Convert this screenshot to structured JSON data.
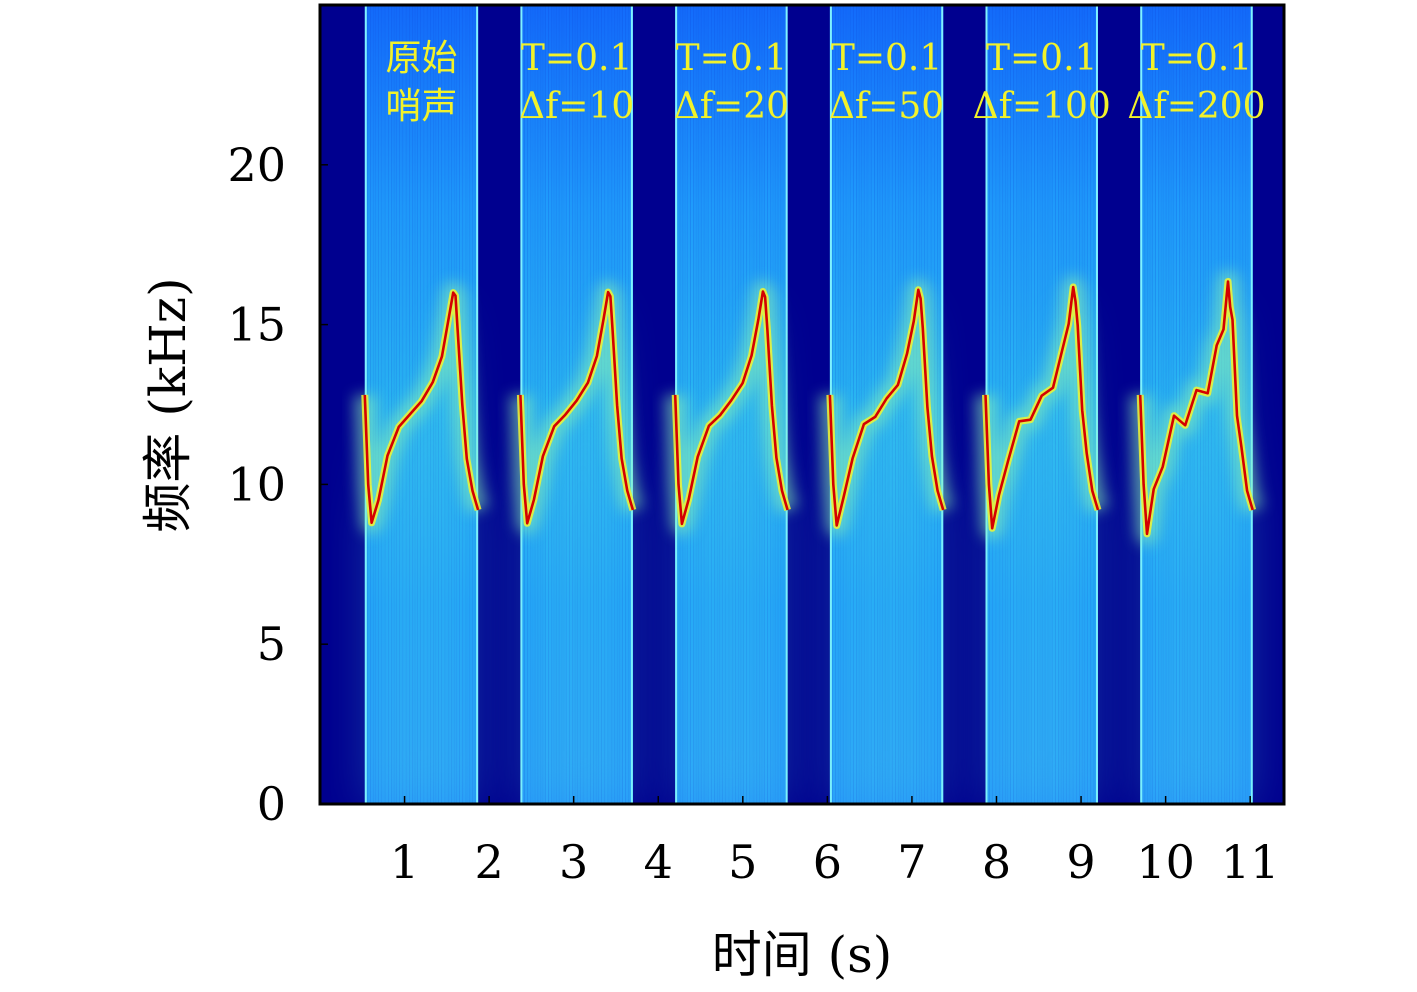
{
  "chart_data": {
    "type": "heatmap",
    "title": "",
    "xlabel": "时间 (s)",
    "ylabel": "频率 (kHz)",
    "xlim": [
      0,
      11.4
    ],
    "ylim": [
      0,
      25
    ],
    "xticks": [
      1,
      2,
      3,
      4,
      5,
      6,
      7,
      8,
      9,
      10,
      11
    ],
    "yticks": [
      0,
      5,
      10,
      15,
      20
    ],
    "grid": false,
    "colormap": "jet",
    "colors": {
      "background": "#00008f",
      "band_low": "#1e9fff",
      "band_glow": "#7af0c8",
      "ridge": "#d40000",
      "annotation": "#f2f22a"
    },
    "segments": [
      {
        "start": 0.53,
        "end": 1.87,
        "label_line1": "原始",
        "label_line2": "哨声",
        "delta_f": null
      },
      {
        "start": 2.37,
        "end": 3.7,
        "label_line1": "T=0.1",
        "label_line2": "Δf=10",
        "delta_f": 10
      },
      {
        "start": 4.2,
        "end": 5.53,
        "label_line1": "T=0.1",
        "label_line2": "Δf=20",
        "delta_f": 20
      },
      {
        "start": 6.03,
        "end": 7.37,
        "label_line1": "T=0.1",
        "label_line2": "Δf=50",
        "delta_f": 50
      },
      {
        "start": 7.87,
        "end": 9.2,
        "label_line1": "T=0.1",
        "label_line2": "Δf=100",
        "delta_f": 100
      },
      {
        "start": 9.7,
        "end": 11.03,
        "label_line1": "T=0.1",
        "label_line2": "Δf=200",
        "delta_f": 200
      }
    ],
    "contour_profile": {
      "t_fraction": [
        0.0,
        0.03,
        0.06,
        0.12,
        0.2,
        0.3,
        0.4,
        0.5,
        0.6,
        0.68,
        0.74,
        0.78,
        0.8,
        0.82,
        0.86,
        0.9,
        0.95,
        1.0
      ],
      "freq_khz": [
        12.8,
        10.0,
        8.8,
        9.5,
        10.9,
        11.8,
        12.2,
        12.6,
        13.2,
        14.0,
        15.2,
        16.0,
        15.9,
        14.8,
        12.5,
        10.8,
        9.8,
        9.2
      ]
    }
  }
}
